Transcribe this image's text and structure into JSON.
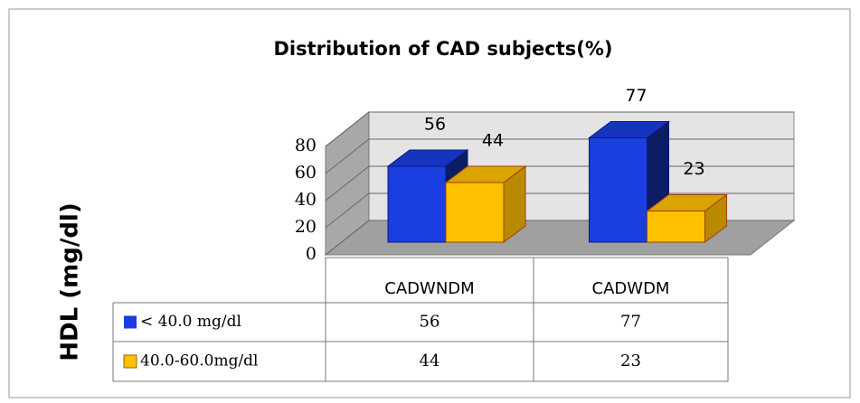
{
  "chart_data": {
    "type": "bar3d",
    "title": "Distribution of CAD subjects(%)",
    "y_axis_label": "HDL (mg/dl)",
    "categories": [
      "CADWNDM",
      "CADWDM"
    ],
    "series": [
      {
        "name": "< 40.0 mg/dl",
        "color": "#1a3ee0",
        "values": [
          56,
          77
        ]
      },
      {
        "name": "40.0-60.0mg/dl",
        "color": "#ffc000",
        "values": [
          44,
          23
        ]
      }
    ],
    "ylim": [
      0,
      80
    ],
    "yticks": [
      0,
      20,
      40,
      60,
      80
    ],
    "grid": true
  }
}
